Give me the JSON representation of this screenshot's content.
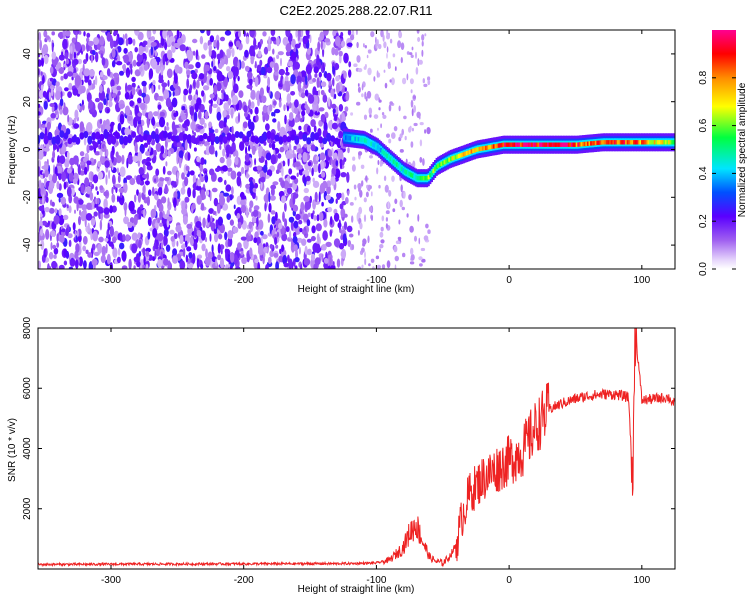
{
  "chart_data": [
    {
      "type": "heatmap",
      "title": "C2E2.2025.288.22.07.R11",
      "xlabel": "Height of straight line (km)",
      "ylabel": "Frequency (Hz)",
      "xlim": [
        -355,
        125
      ],
      "ylim": [
        -50,
        50
      ],
      "xticks": [
        -300,
        -200,
        -100,
        0,
        100
      ],
      "yticks": [
        -40,
        -20,
        0,
        20,
        40
      ],
      "colorbar": {
        "label": "Normalized spectral amplitude",
        "range": [
          0,
          1
        ],
        "ticks": [
          0.0,
          0.2,
          0.4,
          0.6,
          0.8
        ],
        "tick_labels": [
          "0.0",
          "0.2",
          "0.4",
          "0.6",
          "0.8"
        ],
        "colors": [
          "#ffffff",
          "#c9a7f5",
          "#8a2be2",
          "#0000ff",
          "#00e5ff",
          "#00ff00",
          "#ffff00",
          "#ff8c00",
          "#ff0000",
          "#ff00aa"
        ]
      },
      "ridge": {
        "x": [
          -125,
          -110,
          -100,
          -90,
          -80,
          -70,
          -62,
          -55,
          -45,
          -35,
          -25,
          -15,
          -5,
          10,
          30,
          50,
          70,
          90,
          110,
          125
        ],
        "freq": [
          5,
          4,
          1,
          -4,
          -9,
          -12,
          -12,
          -7,
          -4,
          -2,
          0,
          1,
          2,
          2,
          2,
          2,
          3,
          3,
          3,
          3
        ],
        "amplitude": [
          0.35,
          0.45,
          0.4,
          0.5,
          0.45,
          0.5,
          0.6,
          0.55,
          0.65,
          0.7,
          0.75,
          0.8,
          0.9,
          0.95,
          0.95,
          0.85,
          0.8,
          0.85,
          0.7,
          0.6
        ]
      },
      "noise_region_x": [
        -355,
        -120
      ],
      "noise_amplitude": 0.2
    },
    {
      "type": "line",
      "title": "",
      "xlabel": "Height of straight line (km)",
      "ylabel": "SNR (10 * v/v)",
      "xlim": [
        -355,
        125
      ],
      "ylim": [
        0,
        8000
      ],
      "xticks": [
        -300,
        -200,
        -100,
        0,
        100
      ],
      "yticks": [
        2000,
        4000,
        6000,
        8000
      ],
      "color": "#ee2222",
      "series": [
        {
          "name": "SNR",
          "x": [
            -355,
            -300,
            -200,
            -120,
            -100,
            -90,
            -80,
            -75,
            -70,
            -65,
            -60,
            -55,
            -50,
            -45,
            -40,
            -35,
            -30,
            -20,
            -10,
            0,
            10,
            20,
            30,
            40,
            50,
            60,
            70,
            80,
            90,
            93,
            95,
            100,
            110,
            120,
            125
          ],
          "values": [
            150,
            160,
            170,
            180,
            200,
            300,
            700,
            1200,
            1500,
            900,
            400,
            250,
            200,
            400,
            800,
            1800,
            2500,
            3000,
            3300,
            3600,
            3900,
            4700,
            5300,
            5500,
            5650,
            5750,
            5800,
            5800,
            5700,
            3100,
            8000,
            5600,
            5650,
            5700,
            5450
          ]
        }
      ]
    }
  ]
}
